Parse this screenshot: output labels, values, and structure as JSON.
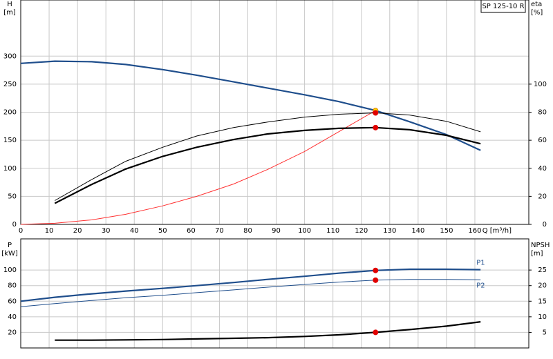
{
  "chart_data": [
    {
      "type": "line",
      "title": "SP 125-10 R",
      "xlabel": "Q [m³/h]",
      "ylabel": [
        "H",
        "[m]"
      ],
      "y2label": [
        "eta",
        "[%]"
      ],
      "xlim": [
        0,
        179
      ],
      "xticks": [
        0,
        10,
        20,
        30,
        40,
        50,
        60,
        70,
        80,
        90,
        100,
        110,
        120,
        130,
        140,
        150,
        160
      ],
      "ylim": [
        0,
        400
      ],
      "yticks": [
        0,
        50,
        100,
        150,
        200,
        250,
        300
      ],
      "y2lim": [
        0,
        160
      ],
      "y2ticks": [
        0,
        20,
        40,
        60,
        80,
        100
      ],
      "grid": true,
      "series": [
        {
          "color": "#1f4e8c",
          "style": "thick",
          "x": [
            0,
            12,
            25,
            37,
            50,
            62,
            75,
            87,
            100,
            112,
            125,
            137,
            150,
            162
          ],
          "values": [
            287,
            291,
            290,
            285,
            276,
            266,
            254,
            243,
            231,
            219,
            203,
            183,
            160,
            132
          ]
        },
        {
          "color": "#ff3030",
          "style": "thin",
          "x": [
            0,
            12,
            25,
            37,
            50,
            62,
            75,
            87,
            100,
            112,
            125
          ],
          "values": [
            0,
            2,
            8,
            18,
            33,
            50,
            72,
            98,
            130,
            165,
            203
          ]
        },
        {
          "color": "#000000",
          "style": "thin",
          "axis": "y2",
          "x": [
            12,
            25,
            37,
            50,
            62,
            75,
            87,
            100,
            112,
            125,
            137,
            150,
            162
          ],
          "values": [
            17,
            32,
            45,
            55,
            63,
            69,
            73,
            76.5,
            78.5,
            79.5,
            78,
            73.5,
            66
          ]
        },
        {
          "color": "#000000",
          "style": "thick",
          "axis": "y2",
          "x": [
            12,
            25,
            37,
            50,
            62,
            75,
            87,
            100,
            112,
            125,
            137,
            150,
            162
          ],
          "values": [
            15,
            28.5,
            39.5,
            48.5,
            55,
            60.5,
            64.5,
            67,
            68.5,
            69,
            67.5,
            63.5,
            57.5
          ]
        }
      ],
      "markers": [
        {
          "x": 125,
          "y": 203,
          "color": "#ffd700"
        },
        {
          "x": 125,
          "y": 79.5,
          "axis": "y2",
          "color": "#e00000"
        },
        {
          "x": 125,
          "y": 69,
          "axis": "y2",
          "color": "#e00000"
        }
      ]
    },
    {
      "type": "line",
      "ylabel": [
        "P",
        "[kW]"
      ],
      "y2label": [
        "NPSH",
        "[m]"
      ],
      "xlim": [
        0,
        179
      ],
      "ylim": [
        0,
        140
      ],
      "yticks": [
        20,
        40,
        60,
        80,
        100
      ],
      "y2lim": [
        0,
        35
      ],
      "y2ticks": [
        5,
        10,
        15,
        20,
        25
      ],
      "grid": true,
      "series": [
        {
          "name": "P1",
          "color": "#1f4e8c",
          "style": "thick",
          "x": [
            0,
            12,
            25,
            37,
            50,
            62,
            75,
            87,
            100,
            112,
            125,
            137,
            150,
            162
          ],
          "values": [
            60,
            65,
            69.5,
            73,
            76.5,
            80,
            84,
            88,
            92,
            96,
            99.5,
            101,
            101,
            100.5
          ]
        },
        {
          "name": "P2",
          "color": "#1f4e8c",
          "style": "thin",
          "x": [
            0,
            12,
            25,
            37,
            50,
            62,
            75,
            87,
            100,
            112,
            125,
            137,
            150,
            162
          ],
          "values": [
            53,
            57,
            61,
            64.5,
            67.5,
            71,
            74.5,
            78,
            81.5,
            84.5,
            87,
            88,
            88,
            87.5
          ]
        },
        {
          "color": "#000000",
          "style": "thick",
          "axis": "y2",
          "x": [
            12,
            25,
            37,
            50,
            62,
            75,
            87,
            100,
            112,
            125,
            137,
            150,
            162
          ],
          "values": [
            2.5,
            2.5,
            2.6,
            2.7,
            2.9,
            3.1,
            3.3,
            3.7,
            4.2,
            5,
            5.9,
            7,
            8.4
          ]
        }
      ],
      "markers": [
        {
          "x": 125,
          "y": 99.5,
          "color": "#e00000"
        },
        {
          "x": 125,
          "y": 87,
          "color": "#e00000"
        },
        {
          "x": 125,
          "y": 5,
          "axis": "y2",
          "color": "#e00000"
        }
      ]
    }
  ]
}
